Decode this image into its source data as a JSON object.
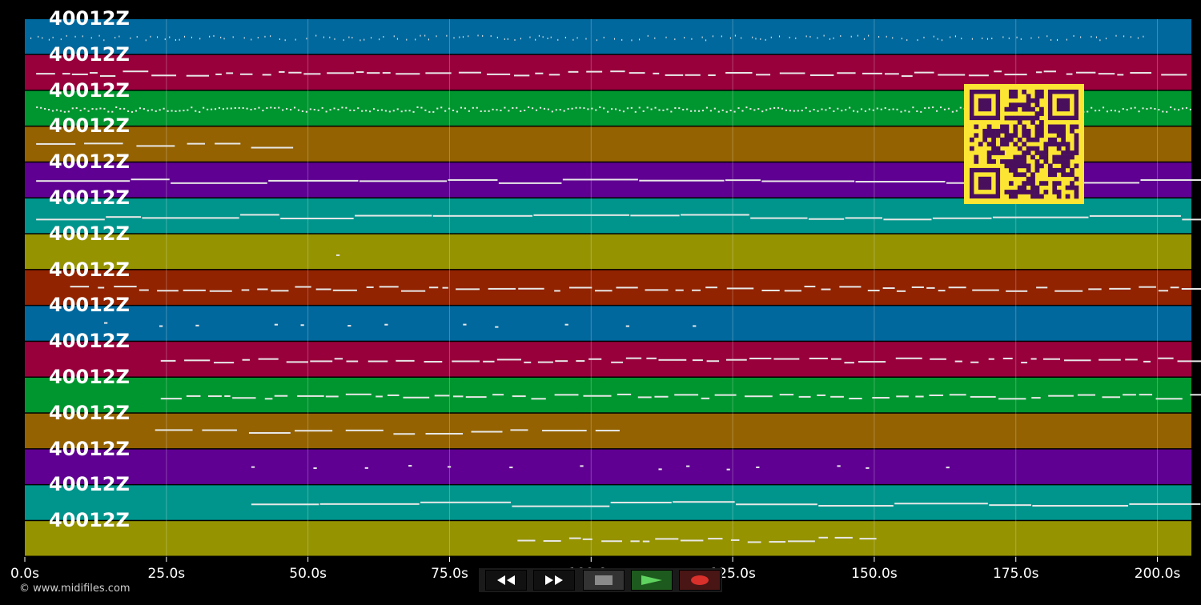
{
  "player": {
    "lane_colors": [
      "#00689d",
      "#98003c",
      "#00962f",
      "#946200",
      "#5f0092",
      "#00958c",
      "#959300",
      "#912300",
      "#00689d",
      "#98003c",
      "#00962f",
      "#946200",
      "#5f0092",
      "#00958c",
      "#959300"
    ],
    "lane_labels": [
      "40012Z",
      "40012Z",
      "40012Z",
      "40012Z",
      "40012Z",
      "40012Z",
      "40012Z",
      "40012Z",
      "40012Z",
      "40012Z",
      "40012Z",
      "40012Z",
      "40012Z",
      "40012Z",
      "40012Z"
    ],
    "time_axis": {
      "unit": "s",
      "max_seconds": 206,
      "ticks": [
        "0.0s",
        "25.0s",
        "50.0s",
        "75.0s",
        "100.0s",
        "125.0s",
        "150.0s",
        "175.0s",
        "200.0s"
      ]
    },
    "copyright": "© www.midifiles.com",
    "qr_colors": {
      "background": "#fce633",
      "modules": "#4a0f5c"
    },
    "transport": {
      "rewind_icon": "rewind-icon",
      "forward_icon": "fast-forward-icon",
      "stop_icon": "stop-icon",
      "play_icon": "play-icon",
      "record_icon": "record-icon"
    }
  }
}
